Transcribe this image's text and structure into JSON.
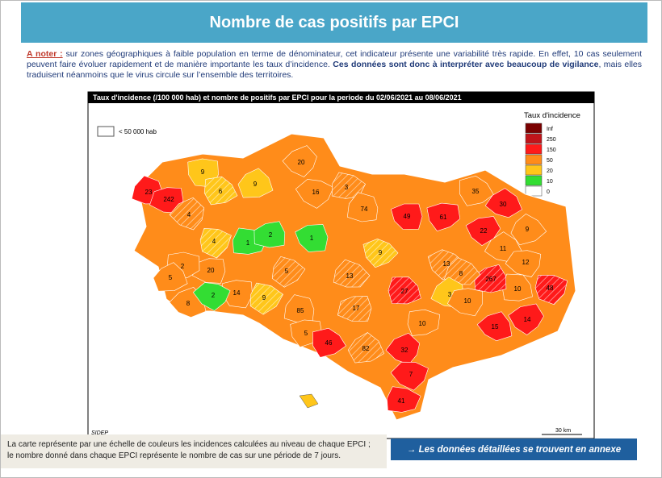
{
  "header": {
    "title": "Nombre de cas positifs par EPCI"
  },
  "note": {
    "lead": "A noter :",
    "text1": " sur zones géographiques à faible population en terme de dénominateur, cet indicateur présente une variabilité très rapide. En effet, 10 cas seulement peuvent faire évoluer rapidement et de manière importante les taux d’incidence. ",
    "bold": "Ces données sont donc à interpréter avec beaucoup de vigilance",
    "text2": ", mais elles traduisent néanmoins que le virus circule sur l’ensemble des territoires."
  },
  "map": {
    "title": "Taux d'incidence (/100 000 hab) et nombre de positifs par EPCI pour la periode du 02/06/2021 au 08/06/2021",
    "legend_title": "Taux d'incidence",
    "legend": [
      {
        "label": "Inf",
        "color": "#7a0000"
      },
      {
        "label": 250,
        "color": "#c0141a"
      },
      {
        "label": 150,
        "color": "#ff1a1a"
      },
      {
        "label": 50,
        "color": "#ff8c1a"
      },
      {
        "label": 20,
        "color": "#ffc61a"
      },
      {
        "label": 10,
        "color": "#33dd33"
      },
      {
        "label": 0,
        "color": "#ffffff"
      }
    ],
    "hatch_label": "< 50 000 hab",
    "source": "SIDEP",
    "scale": "30 km",
    "regions": [
      {
        "label": 23,
        "color": "#ff1a1a"
      },
      {
        "label": 242,
        "color": "#ff1a1a"
      },
      {
        "label": 9,
        "color": "#ffc61a"
      },
      {
        "label": 6,
        "color": "#ffc61a"
      },
      {
        "label": 9,
        "color": "#ffc61a"
      },
      {
        "label": 20,
        "color": "#ff8c1a"
      },
      {
        "label": 16,
        "color": "#ff8c1a"
      },
      {
        "label": 3,
        "color": "#ff8c1a"
      },
      {
        "label": 74,
        "color": "#ff8c1a"
      },
      {
        "label": 49,
        "color": "#ff1a1a"
      },
      {
        "label": 61,
        "color": "#ff1a1a"
      },
      {
        "label": 35,
        "color": "#ff8c1a"
      },
      {
        "label": 30,
        "color": "#ff1a1a"
      },
      {
        "label": 4,
        "color": "#ff8c1a"
      },
      {
        "label": 4,
        "color": "#ffc61a"
      },
      {
        "label": 1,
        "color": "#33dd33"
      },
      {
        "label": 2,
        "color": "#33dd33"
      },
      {
        "label": 1,
        "color": "#33dd33"
      },
      {
        "label": 9,
        "color": "#ffc61a"
      },
      {
        "label": 9,
        "color": "#ff8c1a"
      },
      {
        "label": 11,
        "color": "#ff8c1a"
      },
      {
        "label": 12,
        "color": "#ff8c1a"
      },
      {
        "label": 48,
        "color": "#ff1a1a"
      },
      {
        "label": 10,
        "color": "#ff8c1a"
      },
      {
        "label": 267,
        "color": "#ff1a1a"
      },
      {
        "label": 22,
        "color": "#ff1a1a"
      },
      {
        "label": 13,
        "color": "#ff8c1a"
      },
      {
        "label": 8,
        "color": "#ff8c1a"
      },
      {
        "label": 3,
        "color": "#ffc61a"
      },
      {
        "label": 10,
        "color": "#ff8c1a"
      },
      {
        "label": 10,
        "color": "#ff8c1a"
      },
      {
        "label": 27,
        "color": "#ff1a1a"
      },
      {
        "label": 15,
        "color": "#ff1a1a"
      },
      {
        "label": 14,
        "color": "#ff1a1a"
      },
      {
        "label": 5,
        "color": "#ff8c1a"
      },
      {
        "label": 13,
        "color": "#ff8c1a"
      },
      {
        "label": 20,
        "color": "#ff8c1a"
      },
      {
        "label": 14,
        "color": "#ff8c1a"
      },
      {
        "label": 2,
        "color": "#ff8c1a"
      },
      {
        "label": 5,
        "color": "#ff8c1a"
      },
      {
        "label": 8,
        "color": "#ff8c1a"
      },
      {
        "label": 2,
        "color": "#33dd33"
      },
      {
        "label": 9,
        "color": "#ffc61a"
      },
      {
        "label": 85,
        "color": "#ff8c1a"
      },
      {
        "label": 17,
        "color": "#ff8c1a"
      },
      {
        "label": 5,
        "color": "#ff8c1a"
      },
      {
        "label": 46,
        "color": "#ff1a1a"
      },
      {
        "label": 82,
        "color": "#ff8c1a"
      },
      {
        "label": 32,
        "color": "#ff1a1a"
      },
      {
        "label": 7,
        "color": "#ff1a1a"
      },
      {
        "label": 41,
        "color": "#ff1a1a"
      }
    ]
  },
  "footer": {
    "note1": "La carte représente par une échelle de couleurs les incidences calculées au niveau de chaque EPCI ;",
    "note2": "le nombre donné dans chaque EPCI représente le nombre de cas sur une période de 7 jours.",
    "link": "→ Les données détaillées se trouvent en annexe"
  }
}
